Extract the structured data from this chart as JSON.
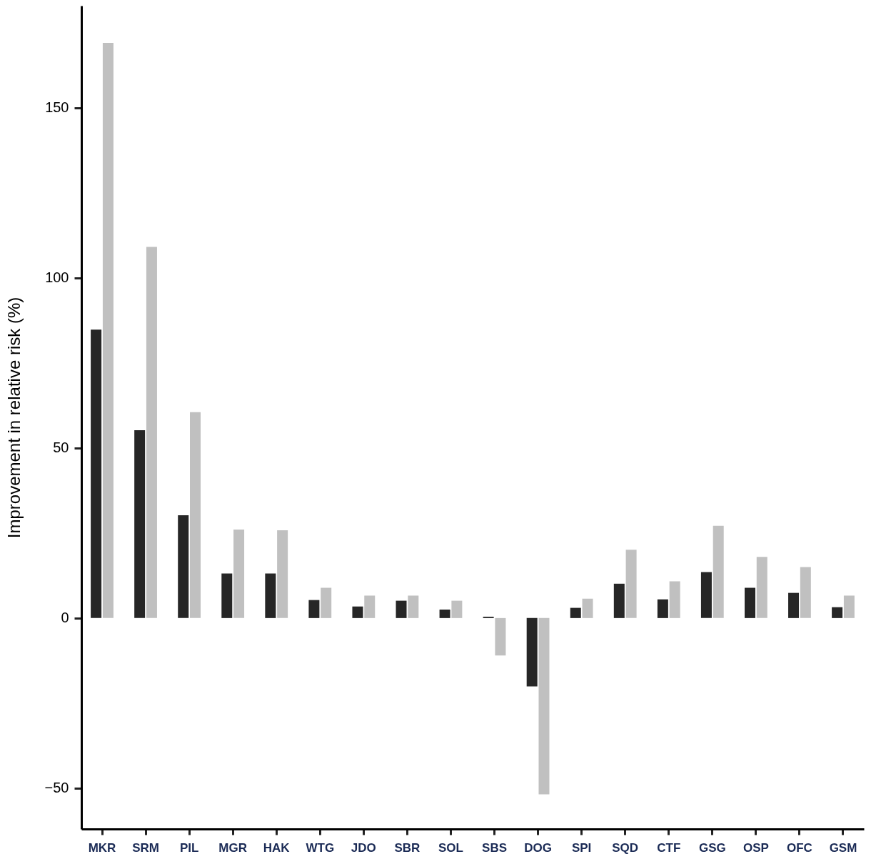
{
  "chart_data": {
    "type": "bar",
    "ylabel": "Improvement in relative risk (%)",
    "categories": [
      "MKR",
      "SRM",
      "PIL",
      "MGR",
      "HAK",
      "WTG",
      "JDO",
      "SBR",
      "SOL",
      "SBS",
      "DOG",
      "SPI",
      "SQD",
      "CTF",
      "GSG",
      "OSP",
      "OFC",
      "GSM"
    ],
    "series": [
      {
        "color": "#262626",
        "values": [
          84.8,
          55.2,
          30.2,
          13.1,
          13.1,
          5.3,
          3.4,
          5.1,
          2.5,
          0.4,
          -20.1,
          3.0,
          10.1,
          5.5,
          13.5,
          8.9,
          7.4,
          3.2
        ]
      },
      {
        "color": "#c0c0c0",
        "values": [
          169.1,
          109.1,
          60.5,
          26.0,
          25.8,
          8.9,
          6.6,
          6.6,
          5.1,
          -11.0,
          -51.8,
          5.7,
          20.1,
          10.8,
          27.1,
          18.0,
          15.0,
          6.6
        ]
      }
    ],
    "ylim": [
      -62,
      180
    ],
    "yticks": [
      -50,
      0,
      50,
      100,
      150
    ],
    "grid": false
  }
}
